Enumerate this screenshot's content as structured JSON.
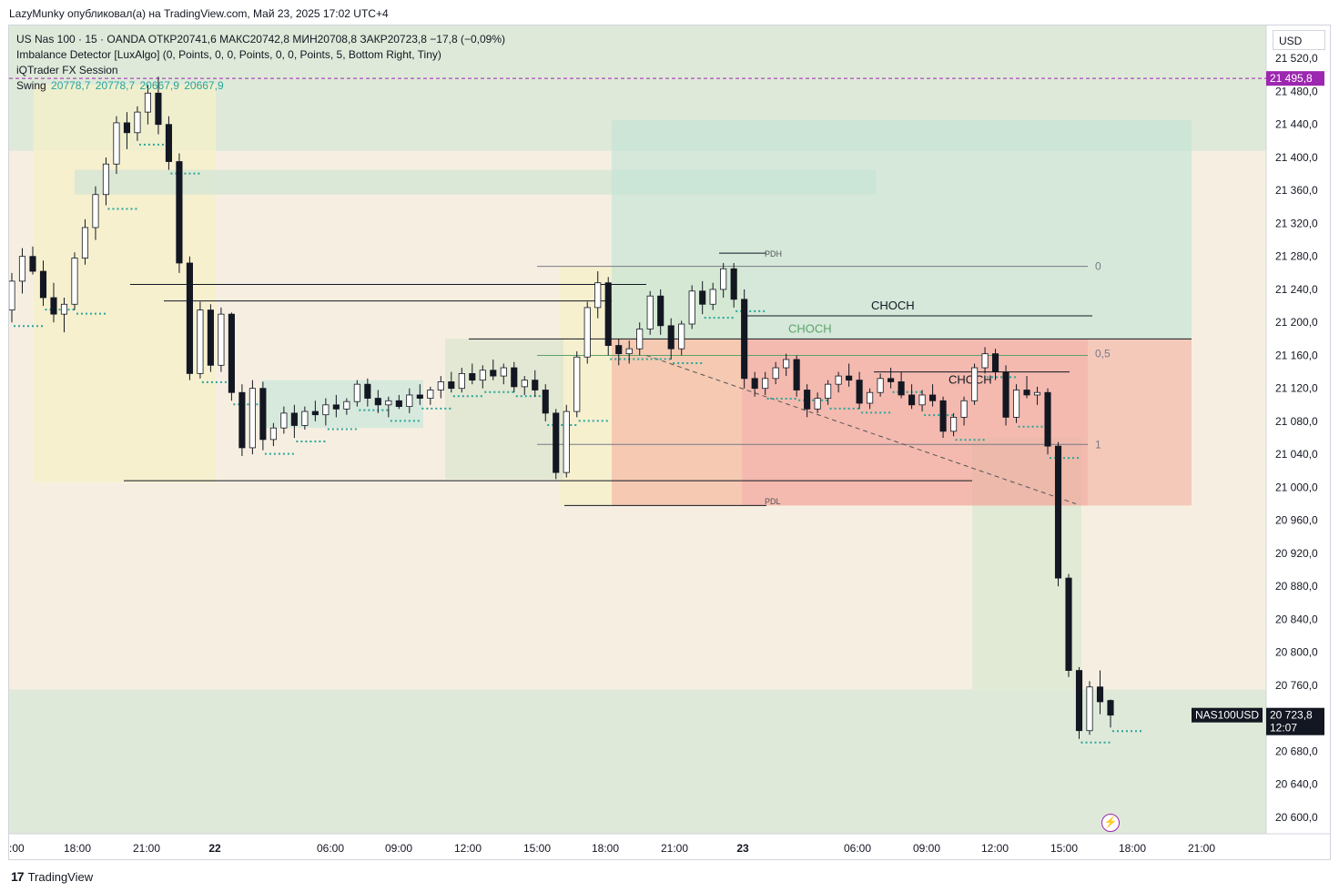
{
  "header": {
    "publisher_line": "LazyMunky опубликовал(а) на TradingView.com, Май 23, 2025 17:02 UTC+4"
  },
  "legend": {
    "symbol_line": "US Nas 100 · 15 · OANDA  ОТКР20741,6  МАКС20742,8  МИН20708,8  ЗАКР20723,8  −17,8 (−0,09%)",
    "indicator_1": "Imbalance Detector [LuxAlgo] (0, Points, 0, 0, Points, 0, 0, Points, 5, Bottom Right, Tiny)",
    "indicator_2": "iQTrader FX Session",
    "swing_label": "Swing",
    "swing_values": [
      "20778,7",
      "20778,7",
      "20667,9",
      "20667,9"
    ]
  },
  "currency_button": "USD",
  "footer": {
    "brand": "TradingView",
    "logo": "tradingview-logo-icon"
  },
  "colors": {
    "bull": "#ffffff",
    "bear": "#131722",
    "accent_green": "#26a69a",
    "purple": "#9c27b0",
    "choch_faded": "#5aa469",
    "price_tag": "#131722"
  },
  "chart_data": {
    "type": "candlestick",
    "symbol": "NAS100USD",
    "timeframe": "15",
    "y_axis": {
      "ylim": [
        20580,
        21560
      ],
      "ticks": [
        21520,
        21480,
        21440,
        21400,
        21360,
        21320,
        21280,
        21240,
        21200,
        21160,
        21120,
        21080,
        21040,
        21000,
        20960,
        20920,
        20880,
        20840,
        20800,
        20760,
        20680,
        20640,
        20600
      ],
      "tick_labels": [
        "21 520,0",
        "21 480,0",
        "21 440,0",
        "21 400,0",
        "21 360,0",
        "21 320,0",
        "21 280,0",
        "21 240,0",
        "21 200,0",
        "21 160,0",
        "21 120,0",
        "21 080,0",
        "21 040,0",
        "21 000,0",
        "20 960,0",
        "20 920,0",
        "20 880,0",
        "20 840,0",
        "20 800,0",
        "20 760,0",
        "20 680,0",
        "20 640,0",
        "20 600,0"
      ]
    },
    "x_axis": {
      "labels": [
        ":00",
        "18:00",
        "21:00",
        "22",
        "06:00",
        "09:00",
        "12:00",
        "15:00",
        "18:00",
        "21:00",
        "23",
        "06:00",
        "09:00",
        "12:00",
        "15:00",
        "18:00",
        "21:00"
      ],
      "bold": [
        false,
        false,
        false,
        true,
        false,
        false,
        false,
        false,
        false,
        false,
        true,
        false,
        false,
        false,
        false,
        false,
        false
      ]
    },
    "price_tags": [
      {
        "name": "dashed-level-tag",
        "value": 21495.8,
        "label": "21 495,8",
        "color": "#9c27b0"
      },
      {
        "name": "last-price-tag",
        "value": 20723.8,
        "label": "20 723,8",
        "sub": "12:07",
        "symbol_label": "NAS100USD",
        "color": "#131722"
      }
    ],
    "annotations": [
      {
        "text": "CHOCH",
        "price": 21220,
        "style": "dark"
      },
      {
        "text": "CHOCH",
        "price": 21192,
        "style": "faded"
      },
      {
        "text": "CHOCH",
        "price": 21130,
        "style": "dark"
      },
      {
        "text": "PDH",
        "price": 21284
      },
      {
        "text": "PDL",
        "price": 20984
      },
      {
        "text": "0",
        "price": 21268
      },
      {
        "text": "0,5",
        "price": 21162
      },
      {
        "text": "1",
        "price": 21052
      }
    ],
    "levels": [
      21268,
      21208,
      21180,
      21160,
      21052,
      21010,
      20978
    ],
    "candles": [
      [
        21215,
        21260,
        21200,
        21250
      ],
      [
        21250,
        21290,
        21235,
        21280
      ],
      [
        21280,
        21292,
        21258,
        21262
      ],
      [
        21262,
        21275,
        21220,
        21230
      ],
      [
        21230,
        21248,
        21200,
        21210
      ],
      [
        21210,
        21230,
        21188,
        21222
      ],
      [
        21222,
        21285,
        21215,
        21278
      ],
      [
        21278,
        21325,
        21270,
        21315
      ],
      [
        21315,
        21365,
        21300,
        21355
      ],
      [
        21355,
        21400,
        21342,
        21392
      ],
      [
        21392,
        21450,
        21380,
        21442
      ],
      [
        21442,
        21455,
        21410,
        21430
      ],
      [
        21430,
        21462,
        21420,
        21455
      ],
      [
        21455,
        21488,
        21440,
        21478
      ],
      [
        21478,
        21498,
        21428,
        21440
      ],
      [
        21440,
        21450,
        21385,
        21395
      ],
      [
        21395,
        21405,
        21260,
        21272
      ],
      [
        21272,
        21280,
        21130,
        21138
      ],
      [
        21138,
        21225,
        21132,
        21215
      ],
      [
        21215,
        21222,
        21140,
        21148
      ],
      [
        21148,
        21218,
        21140,
        21210
      ],
      [
        21210,
        21212,
        21105,
        21115
      ],
      [
        21115,
        21125,
        21038,
        21048
      ],
      [
        21048,
        21130,
        21040,
        21120
      ],
      [
        21120,
        21128,
        21045,
        21058
      ],
      [
        21058,
        21078,
        21050,
        21072
      ],
      [
        21072,
        21098,
        21065,
        21090
      ],
      [
        21090,
        21100,
        21060,
        21075
      ],
      [
        21075,
        21098,
        21070,
        21092
      ],
      [
        21092,
        21105,
        21080,
        21088
      ],
      [
        21088,
        21108,
        21075,
        21100
      ],
      [
        21100,
        21112,
        21085,
        21095
      ],
      [
        21095,
        21108,
        21088,
        21104
      ],
      [
        21104,
        21130,
        21098,
        21125
      ],
      [
        21125,
        21132,
        21098,
        21108
      ],
      [
        21108,
        21118,
        21090,
        21100
      ],
      [
        21100,
        21110,
        21085,
        21105
      ],
      [
        21105,
        21112,
        21095,
        21098
      ],
      [
        21098,
        21120,
        21090,
        21112
      ],
      [
        21112,
        21125,
        21100,
        21108
      ],
      [
        21108,
        21122,
        21100,
        21118
      ],
      [
        21118,
        21135,
        21108,
        21128
      ],
      [
        21128,
        21140,
        21115,
        21120
      ],
      [
        21120,
        21145,
        21115,
        21138
      ],
      [
        21138,
        21150,
        21125,
        21130
      ],
      [
        21130,
        21148,
        21120,
        21142
      ],
      [
        21142,
        21155,
        21130,
        21135
      ],
      [
        21135,
        21150,
        21125,
        21145
      ],
      [
        21145,
        21152,
        21115,
        21122
      ],
      [
        21122,
        21135,
        21112,
        21130
      ],
      [
        21130,
        21142,
        21110,
        21118
      ],
      [
        21118,
        21125,
        21080,
        21090
      ],
      [
        21090,
        21095,
        21010,
        21018
      ],
      [
        21018,
        21100,
        21012,
        21092
      ],
      [
        21092,
        21165,
        21085,
        21158
      ],
      [
        21158,
        21225,
        21150,
        21218
      ],
      [
        21218,
        21262,
        21205,
        21248
      ],
      [
        21248,
        21255,
        21160,
        21172
      ],
      [
        21172,
        21180,
        21148,
        21162
      ],
      [
        21162,
        21178,
        21150,
        21168
      ],
      [
        21168,
        21200,
        21160,
        21192
      ],
      [
        21192,
        21238,
        21185,
        21232
      ],
      [
        21232,
        21240,
        21185,
        21196
      ],
      [
        21196,
        21205,
        21155,
        21168
      ],
      [
        21168,
        21202,
        21160,
        21198
      ],
      [
        21198,
        21245,
        21192,
        21238
      ],
      [
        21238,
        21250,
        21210,
        21222
      ],
      [
        21222,
        21248,
        21215,
        21240
      ],
      [
        21240,
        21272,
        21230,
        21265
      ],
      [
        21265,
        21272,
        21218,
        21228
      ],
      [
        21228,
        21240,
        21120,
        21132
      ],
      [
        21132,
        21140,
        21110,
        21120
      ],
      [
        21120,
        21140,
        21112,
        21132
      ],
      [
        21132,
        21152,
        21125,
        21145
      ],
      [
        21145,
        21162,
        21135,
        21155
      ],
      [
        21155,
        21160,
        21110,
        21118
      ],
      [
        21118,
        21125,
        21085,
        21095
      ],
      [
        21095,
        21115,
        21090,
        21108
      ],
      [
        21108,
        21130,
        21100,
        21125
      ],
      [
        21125,
        21140,
        21115,
        21135
      ],
      [
        21135,
        21150,
        21122,
        21130
      ],
      [
        21130,
        21140,
        21095,
        21102
      ],
      [
        21102,
        21120,
        21095,
        21115
      ],
      [
        21115,
        21138,
        21110,
        21132
      ],
      [
        21132,
        21145,
        21120,
        21128
      ],
      [
        21128,
        21140,
        21108,
        21112
      ],
      [
        21112,
        21125,
        21095,
        21100
      ],
      [
        21100,
        21118,
        21092,
        21112
      ],
      [
        21112,
        21125,
        21098,
        21105
      ],
      [
        21105,
        21110,
        21060,
        21068
      ],
      [
        21068,
        21090,
        21062,
        21085
      ],
      [
        21085,
        21110,
        21075,
        21105
      ],
      [
        21105,
        21150,
        21100,
        21145
      ],
      [
        21145,
        21170,
        21138,
        21162
      ],
      [
        21162,
        21168,
        21130,
        21140
      ],
      [
        21140,
        21148,
        21075,
        21085
      ],
      [
        21085,
        21125,
        21078,
        21118
      ],
      [
        21118,
        21135,
        21108,
        21112
      ],
      [
        21112,
        21122,
        21100,
        21115
      ],
      [
        21115,
        21120,
        21040,
        21050
      ],
      [
        21050,
        21055,
        20880,
        20890
      ],
      [
        20890,
        20895,
        20770,
        20778
      ],
      [
        20778,
        20782,
        20695,
        20705
      ],
      [
        20705,
        20765,
        20700,
        20758
      ],
      [
        20758,
        20778,
        20725,
        20740
      ],
      [
        20741.6,
        20742.8,
        20708.8,
        20723.8
      ]
    ]
  }
}
